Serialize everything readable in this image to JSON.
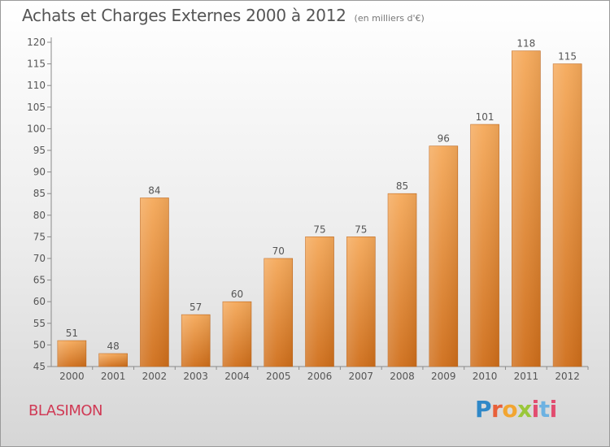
{
  "header": {
    "title": "Achats et Charges Externes 2000 à 2012",
    "subtitle": "(en milliers d'€)"
  },
  "footer": {
    "commune": "BLASIMON",
    "logo_letters": [
      "P",
      "r",
      "o",
      "x",
      "i",
      "t",
      "i"
    ]
  },
  "colors": {
    "bar_top": "#f5a95a",
    "bar_bottom": "#cf6e1a",
    "commune": "#d03a55",
    "text": "#555555"
  },
  "chart_data": {
    "type": "bar",
    "categories": [
      "2000",
      "2001",
      "2002",
      "2003",
      "2004",
      "2005",
      "2006",
      "2007",
      "2008",
      "2009",
      "2010",
      "2011",
      "2012"
    ],
    "values": [
      51,
      48,
      84,
      57,
      60,
      70,
      75,
      75,
      85,
      96,
      101,
      118,
      115
    ],
    "ylim": [
      45,
      120
    ],
    "yticks": [
      45,
      50,
      55,
      60,
      65,
      70,
      75,
      80,
      85,
      90,
      95,
      100,
      105,
      110,
      115,
      120
    ],
    "grid": false,
    "legend": "none"
  }
}
